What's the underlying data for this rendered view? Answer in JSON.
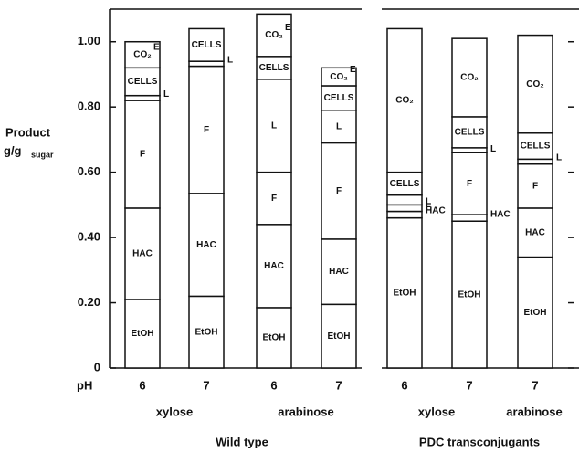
{
  "chart_data": {
    "type": "stacked_bar",
    "y_label": "Product",
    "y_label_unit": "g/g",
    "y_label_sub": "sugar",
    "x_label": "pH",
    "categories": [
      "6",
      "7",
      "6",
      "7",
      "6",
      "7",
      "7"
    ],
    "sugar_labels": [
      "xylose",
      "arabinose",
      "xylose",
      "arabinose"
    ],
    "group_labels": [
      "Wild type",
      "PDC transconjugants"
    ],
    "series": [
      {
        "name": "EtOH",
        "values": [
          0.21,
          0.22,
          0.185,
          0.195,
          0.46,
          0.45,
          0.34
        ]
      },
      {
        "name": "HAC",
        "values": [
          0.28,
          0.315,
          0.255,
          0.2,
          0.02,
          0.02,
          0.15
        ]
      },
      {
        "name": "F",
        "values": [
          0.33,
          0.39,
          0.16,
          0.295,
          0.02,
          0.19,
          0.135
        ]
      },
      {
        "name": "L",
        "values": [
          0.015,
          0.015,
          0.285,
          0.1,
          0.03,
          0.015,
          0.015
        ]
      },
      {
        "name": "CELLS",
        "values": [
          0.085,
          0.1,
          0.07,
          0.075,
          0.07,
          0.095,
          0.08
        ]
      },
      {
        "name": "CO₂",
        "values": [
          0.08,
          null,
          0.13,
          0.055,
          0.44,
          0.24,
          0.3
        ]
      }
    ],
    "annotations": [
      {
        "text": "E",
        "bar": 0
      },
      {
        "text": "E",
        "bar": 2
      },
      {
        "text": "E",
        "bar": 3
      }
    ],
    "ylim": [
      0,
      1.1
    ],
    "yticks": [
      0,
      {
        "value": 0.2,
        "label": "0.20"
      },
      {
        "value": 0.4,
        "label": "0.40"
      },
      {
        "value": 0.6,
        "label": "0.60"
      },
      {
        "value": 0.8,
        "label": "0.80"
      },
      {
        "value": 1.0,
        "label": "1.00"
      }
    ],
    "color": "#ffffff"
  }
}
